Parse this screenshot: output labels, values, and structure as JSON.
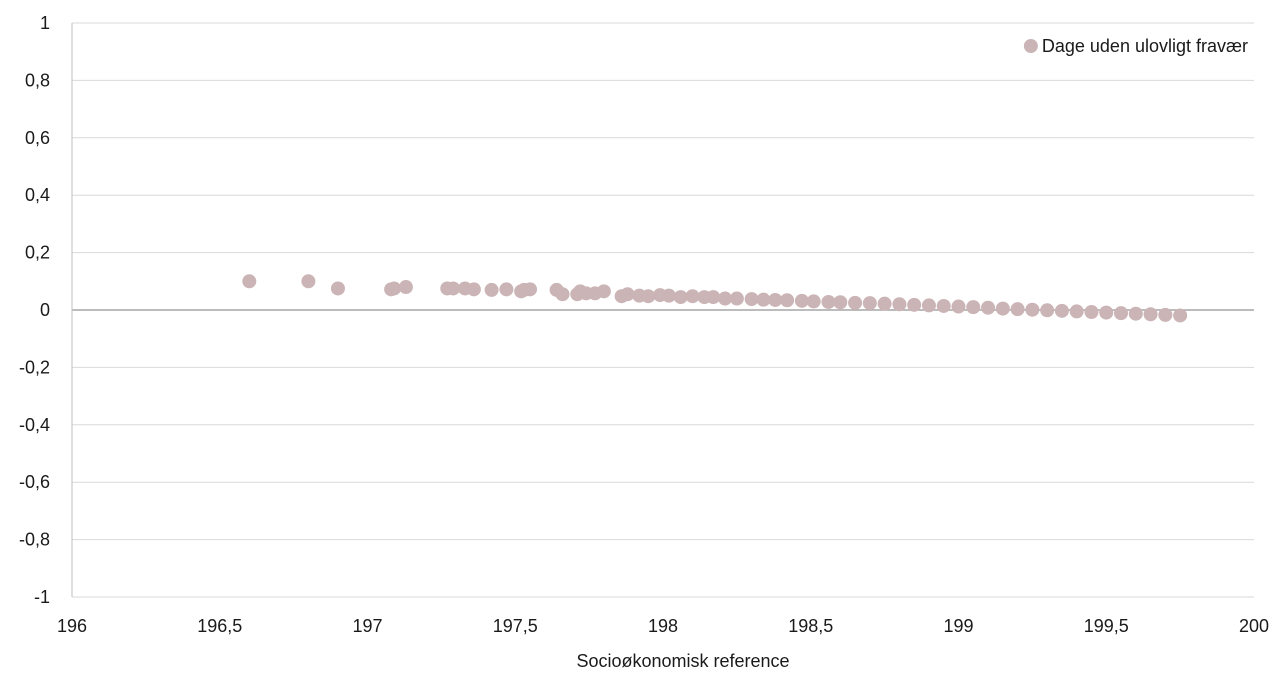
{
  "chart_data": {
    "type": "scatter",
    "title": "",
    "xlabel": "Socioøkonomisk reference",
    "ylabel": "",
    "xlim": [
      196,
      200
    ],
    "ylim": [
      -1,
      1
    ],
    "x_ticks": [
      "196",
      "196,5",
      "197",
      "197,5",
      "198",
      "198,5",
      "199",
      "199,5",
      "200"
    ],
    "y_ticks": [
      "1",
      "0,8",
      "0,6",
      "0,4",
      "0,2",
      "0",
      "-0,2",
      "-0,4",
      "-0,6",
      "-0,8",
      "-1"
    ],
    "grid": "horizontal",
    "legend_position": "top-right",
    "series": [
      {
        "name": "Dage uden ulovligt fravær",
        "color": "#cbb4b5",
        "x": [
          196.6,
          196.8,
          196.9,
          197.08,
          197.09,
          197.13,
          197.27,
          197.29,
          197.33,
          197.36,
          197.42,
          197.47,
          197.52,
          197.53,
          197.55,
          197.64,
          197.66,
          197.71,
          197.72,
          197.74,
          197.77,
          197.8,
          197.86,
          197.88,
          197.92,
          197.95,
          197.99,
          198.02,
          198.06,
          198.1,
          198.14,
          198.17,
          198.21,
          198.25,
          198.3,
          198.34,
          198.38,
          198.42,
          198.47,
          198.51,
          198.56,
          198.6,
          198.65,
          198.7,
          198.75,
          198.8,
          198.85,
          198.9,
          198.95,
          199.0,
          199.05,
          199.1,
          199.15,
          199.2,
          199.25,
          199.3,
          199.35,
          199.4,
          199.45,
          199.5,
          199.55,
          199.6,
          199.65,
          199.7,
          199.75
        ],
        "y": [
          0.1,
          0.1,
          0.075,
          0.072,
          0.075,
          0.08,
          0.075,
          0.075,
          0.075,
          0.072,
          0.07,
          0.072,
          0.065,
          0.07,
          0.072,
          0.07,
          0.055,
          0.055,
          0.065,
          0.058,
          0.058,
          0.065,
          0.048,
          0.055,
          0.05,
          0.048,
          0.052,
          0.05,
          0.045,
          0.048,
          0.045,
          0.045,
          0.04,
          0.04,
          0.038,
          0.036,
          0.035,
          0.034,
          0.032,
          0.03,
          0.028,
          0.027,
          0.025,
          0.024,
          0.022,
          0.02,
          0.018,
          0.016,
          0.014,
          0.012,
          0.01,
          0.008,
          0.005,
          0.003,
          0.001,
          -0.001,
          -0.003,
          -0.005,
          -0.007,
          -0.009,
          -0.011,
          -0.013,
          -0.015,
          -0.017,
          -0.019
        ]
      }
    ]
  }
}
